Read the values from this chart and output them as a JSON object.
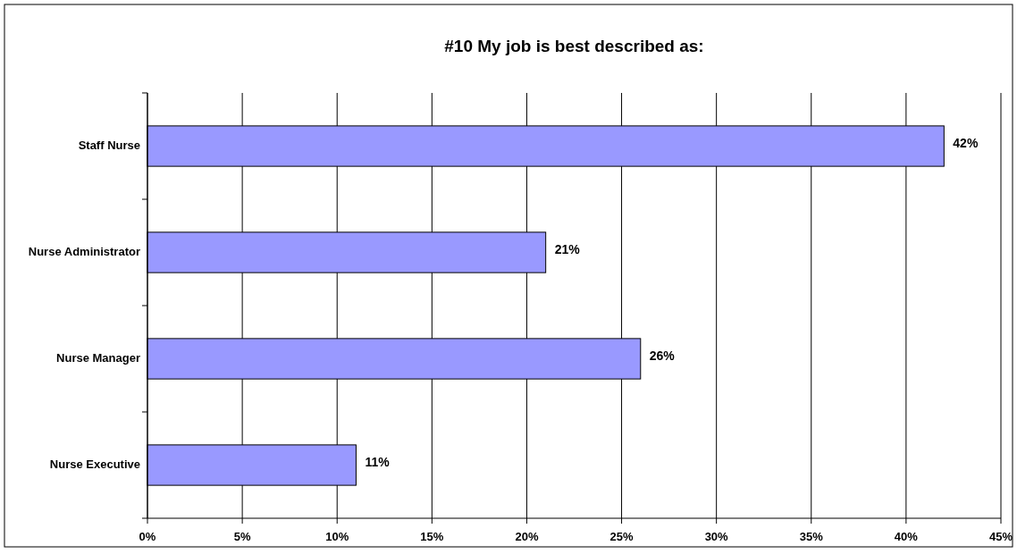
{
  "chart_data": {
    "type": "bar",
    "orientation": "horizontal",
    "title": "#10  My job is best described as:",
    "categories": [
      "Staff Nurse",
      "Nurse Administrator",
      "Nurse Manager",
      "Nurse Executive"
    ],
    "values": [
      42,
      21,
      26,
      11
    ],
    "value_labels": [
      "42%",
      "21%",
      "26%",
      "11%"
    ],
    "color": "#9999ff",
    "xlim": [
      0,
      45
    ],
    "xticks": [
      {
        "value": 0,
        "label": "0%"
      },
      {
        "value": 5,
        "label": "5%"
      },
      {
        "value": 10,
        "label": "10%"
      },
      {
        "value": 15,
        "label": "15%"
      },
      {
        "value": 20,
        "label": "20%"
      },
      {
        "value": 25,
        "label": "25%"
      },
      {
        "value": 30,
        "label": "30%"
      },
      {
        "value": 35,
        "label": "35%"
      },
      {
        "value": 40,
        "label": "40%"
      },
      {
        "value": 45,
        "label": "45%"
      }
    ],
    "grid": "x"
  }
}
